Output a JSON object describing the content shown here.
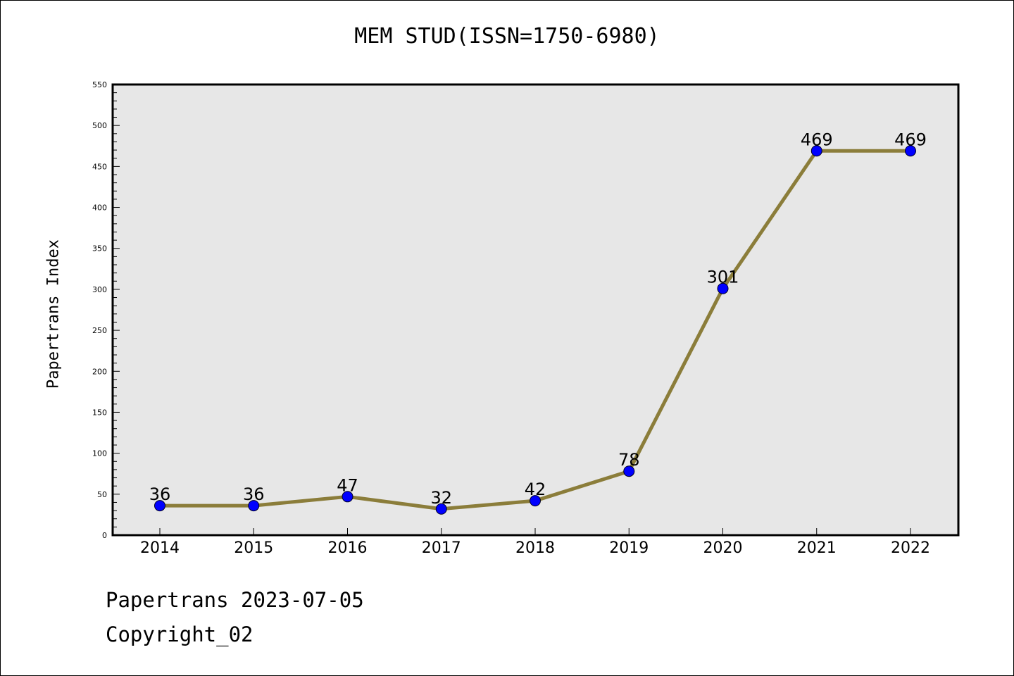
{
  "chart_data": {
    "type": "line",
    "title": "MEM STUD(ISSN=1750-6980)",
    "ylabel": "Papertrans Index",
    "xlabel": "",
    "categories": [
      "2014",
      "2015",
      "2016",
      "2017",
      "2018",
      "2019",
      "2020",
      "2021",
      "2022"
    ],
    "series": [
      {
        "values": [
          36,
          36,
          47,
          32,
          42,
          78,
          301,
          469,
          469
        ]
      }
    ],
    "ylim": [
      0,
      550
    ],
    "yticks": [
      0,
      50,
      100,
      150,
      200,
      250,
      300,
      350,
      400,
      450,
      500,
      550
    ],
    "grid": false,
    "colors": {
      "line": "#8b7d3a",
      "marker": "#0000ff",
      "plot_background": "#e7e7e7"
    }
  },
  "footer": {
    "line1": "Papertrans 2023-07-05",
    "line2": "Copyright_02"
  }
}
